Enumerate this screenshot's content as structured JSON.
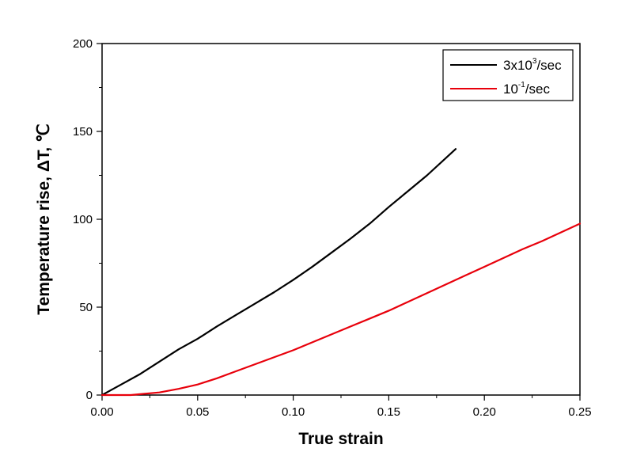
{
  "chart_data": {
    "type": "line",
    "xlabel": "True strain",
    "ylabel": "Temperature rise, ΔT, ℃",
    "xlim": [
      0,
      0.25
    ],
    "ylim": [
      0,
      200
    ],
    "x_ticks": [
      "0.00",
      "0.05",
      "0.10",
      "0.15",
      "0.20",
      "0.25"
    ],
    "y_ticks": [
      "0",
      "50",
      "100",
      "150",
      "200"
    ],
    "grid": false,
    "legend_position": "top-right",
    "series": [
      {
        "name_base": "3x10",
        "name_exp": "3",
        "name_suffix": "/sec",
        "color": "#000000",
        "x": [
          0.0,
          0.005,
          0.01,
          0.02,
          0.03,
          0.04,
          0.05,
          0.06,
          0.07,
          0.08,
          0.09,
          0.1,
          0.11,
          0.12,
          0.13,
          0.14,
          0.15,
          0.16,
          0.17,
          0.18,
          0.185
        ],
        "y": [
          0,
          3,
          6,
          12,
          19,
          26,
          32,
          39,
          45.5,
          52,
          58.5,
          65.5,
          73,
          81,
          89,
          97.5,
          107,
          116,
          125,
          135,
          140
        ]
      },
      {
        "name_base": "10",
        "name_exp": "-1",
        "name_suffix": "/sec",
        "color": "#e8000b",
        "x": [
          0.0,
          0.015,
          0.02,
          0.03,
          0.04,
          0.05,
          0.06,
          0.07,
          0.08,
          0.09,
          0.1,
          0.11,
          0.12,
          0.13,
          0.14,
          0.15,
          0.16,
          0.17,
          0.18,
          0.19,
          0.2,
          0.21,
          0.22,
          0.23,
          0.24,
          0.25
        ],
        "y": [
          0,
          0,
          0.5,
          1.5,
          3.5,
          6,
          9.5,
          13.5,
          17.5,
          21.5,
          25.5,
          30,
          34.5,
          39,
          43.5,
          48,
          53,
          58,
          63,
          68,
          73,
          78,
          83,
          87.5,
          92.5,
          97.5
        ]
      }
    ]
  }
}
